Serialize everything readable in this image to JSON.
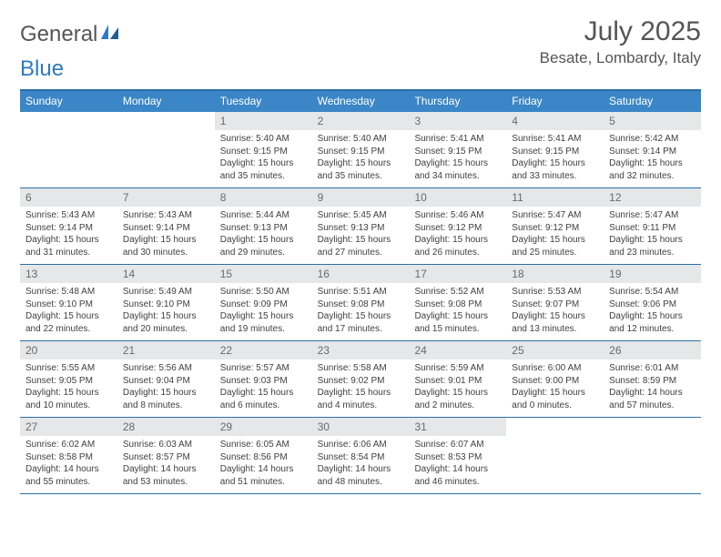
{
  "header": {
    "logo_text_1": "General",
    "logo_text_2": "Blue",
    "month_title": "July 2025",
    "location": "Besate, Lombardy, Italy"
  },
  "colors": {
    "header_bar": "#3b86c6",
    "header_border": "#2c6fa8",
    "daynum_bg": "#e5e7e9",
    "daynum_fg": "#6a6a6a",
    "text": "#404040",
    "logo_blue": "#2f7ac0",
    "logo_gray": "#555555"
  },
  "days_of_week": [
    "Sunday",
    "Monday",
    "Tuesday",
    "Wednesday",
    "Thursday",
    "Friday",
    "Saturday"
  ],
  "weeks": [
    [
      {
        "n": "",
        "sr": "",
        "ss": "",
        "dl": ""
      },
      {
        "n": "",
        "sr": "",
        "ss": "",
        "dl": ""
      },
      {
        "n": "1",
        "sr": "Sunrise: 5:40 AM",
        "ss": "Sunset: 9:15 PM",
        "dl": "Daylight: 15 hours and 35 minutes."
      },
      {
        "n": "2",
        "sr": "Sunrise: 5:40 AM",
        "ss": "Sunset: 9:15 PM",
        "dl": "Daylight: 15 hours and 35 minutes."
      },
      {
        "n": "3",
        "sr": "Sunrise: 5:41 AM",
        "ss": "Sunset: 9:15 PM",
        "dl": "Daylight: 15 hours and 34 minutes."
      },
      {
        "n": "4",
        "sr": "Sunrise: 5:41 AM",
        "ss": "Sunset: 9:15 PM",
        "dl": "Daylight: 15 hours and 33 minutes."
      },
      {
        "n": "5",
        "sr": "Sunrise: 5:42 AM",
        "ss": "Sunset: 9:14 PM",
        "dl": "Daylight: 15 hours and 32 minutes."
      }
    ],
    [
      {
        "n": "6",
        "sr": "Sunrise: 5:43 AM",
        "ss": "Sunset: 9:14 PM",
        "dl": "Daylight: 15 hours and 31 minutes."
      },
      {
        "n": "7",
        "sr": "Sunrise: 5:43 AM",
        "ss": "Sunset: 9:14 PM",
        "dl": "Daylight: 15 hours and 30 minutes."
      },
      {
        "n": "8",
        "sr": "Sunrise: 5:44 AM",
        "ss": "Sunset: 9:13 PM",
        "dl": "Daylight: 15 hours and 29 minutes."
      },
      {
        "n": "9",
        "sr": "Sunrise: 5:45 AM",
        "ss": "Sunset: 9:13 PM",
        "dl": "Daylight: 15 hours and 27 minutes."
      },
      {
        "n": "10",
        "sr": "Sunrise: 5:46 AM",
        "ss": "Sunset: 9:12 PM",
        "dl": "Daylight: 15 hours and 26 minutes."
      },
      {
        "n": "11",
        "sr": "Sunrise: 5:47 AM",
        "ss": "Sunset: 9:12 PM",
        "dl": "Daylight: 15 hours and 25 minutes."
      },
      {
        "n": "12",
        "sr": "Sunrise: 5:47 AM",
        "ss": "Sunset: 9:11 PM",
        "dl": "Daylight: 15 hours and 23 minutes."
      }
    ],
    [
      {
        "n": "13",
        "sr": "Sunrise: 5:48 AM",
        "ss": "Sunset: 9:10 PM",
        "dl": "Daylight: 15 hours and 22 minutes."
      },
      {
        "n": "14",
        "sr": "Sunrise: 5:49 AM",
        "ss": "Sunset: 9:10 PM",
        "dl": "Daylight: 15 hours and 20 minutes."
      },
      {
        "n": "15",
        "sr": "Sunrise: 5:50 AM",
        "ss": "Sunset: 9:09 PM",
        "dl": "Daylight: 15 hours and 19 minutes."
      },
      {
        "n": "16",
        "sr": "Sunrise: 5:51 AM",
        "ss": "Sunset: 9:08 PM",
        "dl": "Daylight: 15 hours and 17 minutes."
      },
      {
        "n": "17",
        "sr": "Sunrise: 5:52 AM",
        "ss": "Sunset: 9:08 PM",
        "dl": "Daylight: 15 hours and 15 minutes."
      },
      {
        "n": "18",
        "sr": "Sunrise: 5:53 AM",
        "ss": "Sunset: 9:07 PM",
        "dl": "Daylight: 15 hours and 13 minutes."
      },
      {
        "n": "19",
        "sr": "Sunrise: 5:54 AM",
        "ss": "Sunset: 9:06 PM",
        "dl": "Daylight: 15 hours and 12 minutes."
      }
    ],
    [
      {
        "n": "20",
        "sr": "Sunrise: 5:55 AM",
        "ss": "Sunset: 9:05 PM",
        "dl": "Daylight: 15 hours and 10 minutes."
      },
      {
        "n": "21",
        "sr": "Sunrise: 5:56 AM",
        "ss": "Sunset: 9:04 PM",
        "dl": "Daylight: 15 hours and 8 minutes."
      },
      {
        "n": "22",
        "sr": "Sunrise: 5:57 AM",
        "ss": "Sunset: 9:03 PM",
        "dl": "Daylight: 15 hours and 6 minutes."
      },
      {
        "n": "23",
        "sr": "Sunrise: 5:58 AM",
        "ss": "Sunset: 9:02 PM",
        "dl": "Daylight: 15 hours and 4 minutes."
      },
      {
        "n": "24",
        "sr": "Sunrise: 5:59 AM",
        "ss": "Sunset: 9:01 PM",
        "dl": "Daylight: 15 hours and 2 minutes."
      },
      {
        "n": "25",
        "sr": "Sunrise: 6:00 AM",
        "ss": "Sunset: 9:00 PM",
        "dl": "Daylight: 15 hours and 0 minutes."
      },
      {
        "n": "26",
        "sr": "Sunrise: 6:01 AM",
        "ss": "Sunset: 8:59 PM",
        "dl": "Daylight: 14 hours and 57 minutes."
      }
    ],
    [
      {
        "n": "27",
        "sr": "Sunrise: 6:02 AM",
        "ss": "Sunset: 8:58 PM",
        "dl": "Daylight: 14 hours and 55 minutes."
      },
      {
        "n": "28",
        "sr": "Sunrise: 6:03 AM",
        "ss": "Sunset: 8:57 PM",
        "dl": "Daylight: 14 hours and 53 minutes."
      },
      {
        "n": "29",
        "sr": "Sunrise: 6:05 AM",
        "ss": "Sunset: 8:56 PM",
        "dl": "Daylight: 14 hours and 51 minutes."
      },
      {
        "n": "30",
        "sr": "Sunrise: 6:06 AM",
        "ss": "Sunset: 8:54 PM",
        "dl": "Daylight: 14 hours and 48 minutes."
      },
      {
        "n": "31",
        "sr": "Sunrise: 6:07 AM",
        "ss": "Sunset: 8:53 PM",
        "dl": "Daylight: 14 hours and 46 minutes."
      },
      {
        "n": "",
        "sr": "",
        "ss": "",
        "dl": ""
      },
      {
        "n": "",
        "sr": "",
        "ss": "",
        "dl": ""
      }
    ]
  ]
}
